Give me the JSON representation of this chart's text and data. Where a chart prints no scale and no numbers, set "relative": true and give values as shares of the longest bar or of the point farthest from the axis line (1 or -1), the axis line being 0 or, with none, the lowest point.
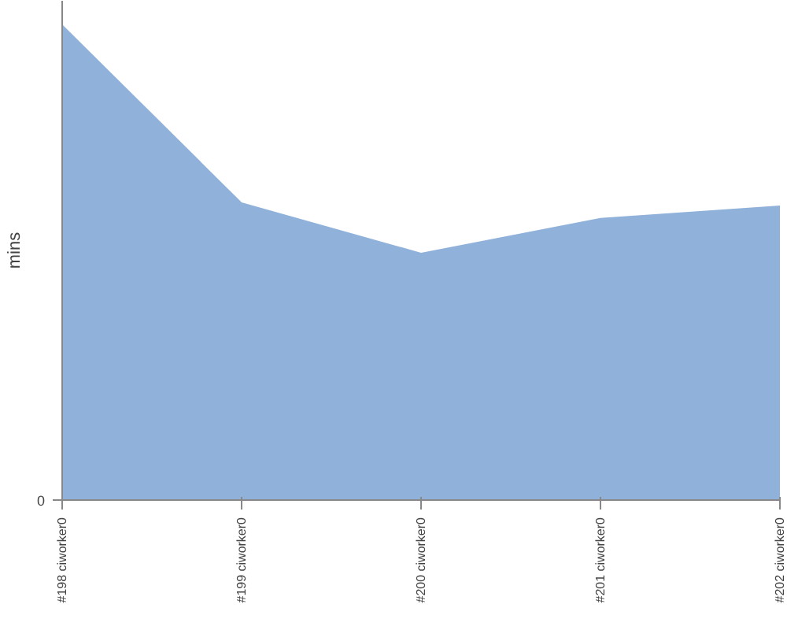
{
  "chart_data": {
    "type": "area",
    "ylabel": "mins",
    "relative": true,
    "annotations": [
      "0"
    ],
    "categories": [
      "#198 ciworker0",
      "#199 ciworker0",
      "#200 ciworker0",
      "#201 ciworker0",
      "#202 ciworker0"
    ],
    "series": [
      {
        "color": "#8fb1da",
        "values": [
          1,
          0.626,
          0.52,
          0.593,
          0.619
        ]
      }
    ],
    "grid": false
  }
}
